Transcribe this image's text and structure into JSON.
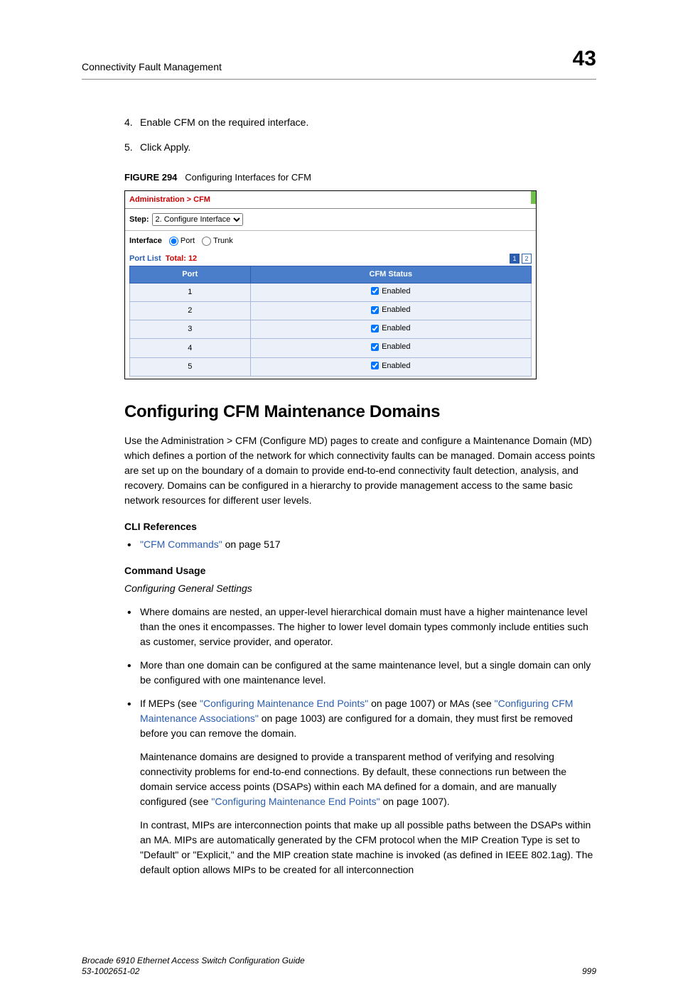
{
  "header": {
    "left": "Connectivity Fault Management",
    "chapter": "43"
  },
  "steps": [
    {
      "n": "4.",
      "text": "Enable CFM on the required interface."
    },
    {
      "n": "5.",
      "text": "Click Apply."
    }
  ],
  "figure": {
    "label": "FIGURE 294",
    "caption": "Configuring Interfaces for CFM"
  },
  "panel": {
    "breadcrumb": "Administration > CFM",
    "step_label": "Step:",
    "step_value": "2. Configure Interface",
    "interface_label": "Interface",
    "radio_port": "Port",
    "radio_trunk": "Trunk",
    "portlist_label": "Port List",
    "portlist_total_label": "Total:",
    "portlist_total_value": "12",
    "pager": [
      "1",
      "2"
    ],
    "col_port": "Port",
    "col_status": "CFM Status",
    "status_text": "Enabled",
    "rows": [
      "1",
      "2",
      "3",
      "4",
      "5"
    ]
  },
  "section_heading": "Configuring CFM Maintenance Domains",
  "intro_paragraph": "Use the Administration > CFM (Configure MD) pages to create and configure a Maintenance Domain (MD) which defines a portion of the network for which connectivity faults can be managed. Domain access points are set up on the boundary of a domain to provide end-to-end connectivity fault detection, analysis, and recovery. Domains can be configured in a hierarchy to provide management access to the same basic network resources for different user levels.",
  "cli_heading": "CLI References",
  "cli_link_text": "\"CFM Commands\"",
  "cli_link_suffix": " on page 517",
  "cmd_usage_heading": "Command Usage",
  "cmd_usage_sub": "Configuring General Settings",
  "bullets": {
    "b1": "Where domains are nested, an upper-level hierarchical domain must have a higher maintenance level than the ones it encompasses. The higher to lower level domain types commonly include entities such as customer, service provider, and operator.",
    "b2": "More than one domain can be configured at the same maintenance level, but a single domain can only be configured with one maintenance level.",
    "b3_pre": "If MEPs (see ",
    "b3_link1": "\"Configuring Maintenance End Points\"",
    "b3_mid1": " on page 1007) or MAs (see ",
    "b3_link2": "\"Configuring CFM Maintenance Associations\"",
    "b3_mid2": " on page 1003) are configured for a domain, they must first be removed before you can remove the domain.",
    "b3_p2_pre": "Maintenance domains are designed to provide a transparent method of verifying and resolving connectivity problems for end-to-end connections. By default, these connections run between the domain service access points (DSAPs) within each MA defined for a domain, and are manually configured (see ",
    "b3_p2_link": "\"Configuring Maintenance End Points\"",
    "b3_p2_post": " on page 1007).",
    "b3_p3": "In contrast, MIPs are interconnection points that make up all possible paths between the DSAPs within an MA. MIPs are automatically generated by the CFM protocol when the MIP Creation Type is set to \"Default\" or \"Explicit,\" and the MIP creation state machine is invoked (as defined in IEEE 802.1ag). The default option allows MIPs to be created for all interconnection"
  },
  "footer": {
    "title": "Brocade 6910 Ethernet Access Switch Configuration Guide",
    "docnum": "53-1002651-02",
    "page": "999"
  }
}
